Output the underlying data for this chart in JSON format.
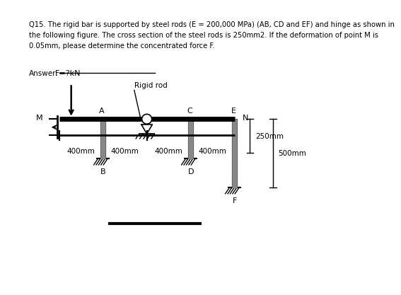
{
  "bg_color": "#ffffff",
  "text_color": "#000000",
  "question_text": "Q15. The rigid bar is supported by steel rods (E = 200,000 MPa) (AB, CD and EF) and hinge as shown in\nthe following figure. The cross section of the steel rods is 250mm2. If the deformation of point M is\n0.05mm, please determine the concentrated force F.",
  "answer_label": "Answer:",
  "force_label": "F=?kN",
  "rigid_rod_label": "Rigid rod",
  "dim_labels": [
    "400mm",
    "400mm",
    "400mm",
    "400mm"
  ],
  "side_dim_250": "250mm",
  "side_dim_500": "500mm",
  "bar_color": "#888888",
  "line_color": "#000000"
}
